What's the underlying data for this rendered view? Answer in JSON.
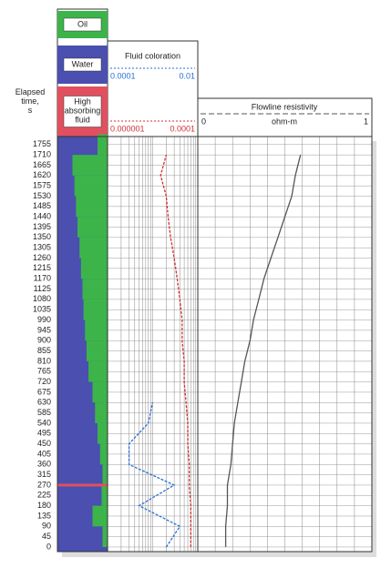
{
  "chart_data": {
    "type": "well-log",
    "y_label": "Elapsed time, s",
    "ylim": [
      -20,
      1790
    ],
    "yticks": [
      1755,
      1710,
      1665,
      1620,
      1575,
      1530,
      1485,
      1440,
      1395,
      1350,
      1305,
      1260,
      1215,
      1170,
      1125,
      1080,
      1035,
      990,
      945,
      900,
      855,
      810,
      765,
      720,
      675,
      630,
      585,
      540,
      495,
      450,
      405,
      360,
      315,
      270,
      225,
      180,
      135,
      90,
      45,
      0
    ],
    "grid": true,
    "time": [
      0,
      90,
      180,
      270,
      360,
      450,
      540,
      630,
      720,
      810,
      900,
      990,
      1080,
      1170,
      1260,
      1350,
      1440,
      1530,
      1620,
      1710
    ],
    "legend": [
      {
        "name": "Oil",
        "color": "#3cb44a"
      },
      {
        "name": "Water",
        "color": "#4a4fb0"
      },
      {
        "name": "High absorbing fluid",
        "color": "#e0505e"
      }
    ],
    "tracks": [
      {
        "kind": "fluid",
        "xlim": [
          0,
          1
        ],
        "series": [
          {
            "name": "Oil",
            "color": "#3cb44a",
            "values": [
              0.1,
              0.3,
              0.12,
              0.1,
              0.15,
              0.2,
              0.25,
              0.3,
              0.38,
              0.42,
              0.45,
              0.48,
              0.5,
              0.53,
              0.56,
              0.6,
              0.63,
              0.66,
              0.7,
              0.2
            ]
          },
          {
            "name": "High absorbing fluid",
            "color": "#e0505e",
            "values": [
              0,
              0,
              0,
              1,
              0,
              0,
              0,
              0,
              0,
              0,
              0,
              0,
              0,
              0,
              0,
              0,
              0,
              0,
              0,
              0
            ]
          }
        ]
      },
      {
        "kind": "curves",
        "title": "Fluid coloration",
        "log": true,
        "series": [
          {
            "color": "#2a6fd0",
            "xlim": [
              0.0001,
              0.01
            ],
            "values": [
              0.002,
              0.004,
              0.0005,
              0.003,
              0.0003,
              0.0003,
              0.0008,
              0.001,
              null,
              null,
              null,
              null,
              null,
              null,
              null,
              null,
              null,
              null,
              null,
              null
            ]
          },
          {
            "color": "#d03030",
            "xlim": [
              1e-06,
              0.0001
            ],
            "values": [
              7e-05,
              7e-05,
              7e-05,
              6.5e-05,
              6.5e-05,
              6e-05,
              6e-05,
              5.5e-05,
              5e-05,
              5e-05,
              4.5e-05,
              4.5e-05,
              4e-05,
              3.5e-05,
              3e-05,
              2.5e-05,
              2.2e-05,
              2e-05,
              1.5e-05,
              2e-05
            ]
          }
        ]
      },
      {
        "kind": "curves",
        "title": "Flowline resistivity",
        "unit": "ohm-m",
        "log": false,
        "series": [
          {
            "color": "#555555",
            "xlim": [
              0,
              1
            ],
            "values": [
              0.16,
              0.16,
              0.17,
              0.17,
              0.19,
              0.2,
              0.21,
              0.23,
              0.25,
              0.27,
              0.3,
              0.32,
              0.35,
              0.38,
              0.42,
              0.46,
              0.5,
              0.54,
              0.56,
              0.59
            ]
          }
        ]
      }
    ]
  }
}
